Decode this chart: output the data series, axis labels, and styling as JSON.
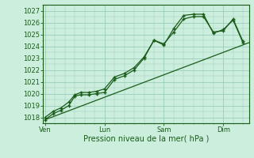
{
  "background_color": "#cceedd",
  "grid_color": "#99ccbb",
  "line_color": "#1a5c1a",
  "xlabel": "Pression niveau de la mer( hPa )",
  "ylim": [
    1017.5,
    1027.5
  ],
  "yticks": [
    1018,
    1019,
    1020,
    1021,
    1022,
    1023,
    1024,
    1025,
    1026,
    1027
  ],
  "xtick_labels": [
    "Ven",
    "Lun",
    "Sam",
    "Dim"
  ],
  "xtick_positions": [
    0,
    3,
    6,
    9
  ],
  "xlim": [
    -0.1,
    10.3
  ],
  "series1_x": [
    0.0,
    0.4,
    0.8,
    1.2,
    1.5,
    1.8,
    2.2,
    2.6,
    3.0,
    3.5,
    4.0,
    4.5,
    5.0,
    5.5,
    6.0,
    6.5,
    7.0,
    7.5,
    8.0,
    8.5,
    9.0,
    9.5,
    10.0
  ],
  "series1_y": [
    1017.8,
    1018.3,
    1018.6,
    1019.0,
    1019.8,
    1019.9,
    1019.9,
    1020.0,
    1020.1,
    1021.2,
    1021.5,
    1022.0,
    1023.0,
    1024.5,
    1024.2,
    1025.2,
    1026.3,
    1026.5,
    1026.5,
    1025.2,
    1025.3,
    1026.3,
    1024.4
  ],
  "series2_x": [
    0.0,
    0.4,
    0.8,
    1.2,
    1.5,
    1.8,
    2.2,
    2.6,
    3.0,
    3.5,
    4.0,
    4.5,
    5.0,
    5.5,
    6.0,
    6.5,
    7.0,
    7.5,
    8.0,
    8.5,
    9.0,
    9.5,
    10.0
  ],
  "series2_y": [
    1018.0,
    1018.5,
    1018.8,
    1019.3,
    1019.9,
    1020.1,
    1020.1,
    1020.2,
    1020.4,
    1021.4,
    1021.7,
    1022.2,
    1023.1,
    1024.5,
    1024.1,
    1025.5,
    1026.6,
    1026.7,
    1026.7,
    1025.1,
    1025.4,
    1026.2,
    1024.3
  ],
  "trend_x": [
    0.0,
    10.3
  ],
  "trend_y": [
    1017.8,
    1024.3
  ],
  "minor_ytick_step": 0.5,
  "xlabel_fontsize": 7,
  "tick_fontsize": 6
}
